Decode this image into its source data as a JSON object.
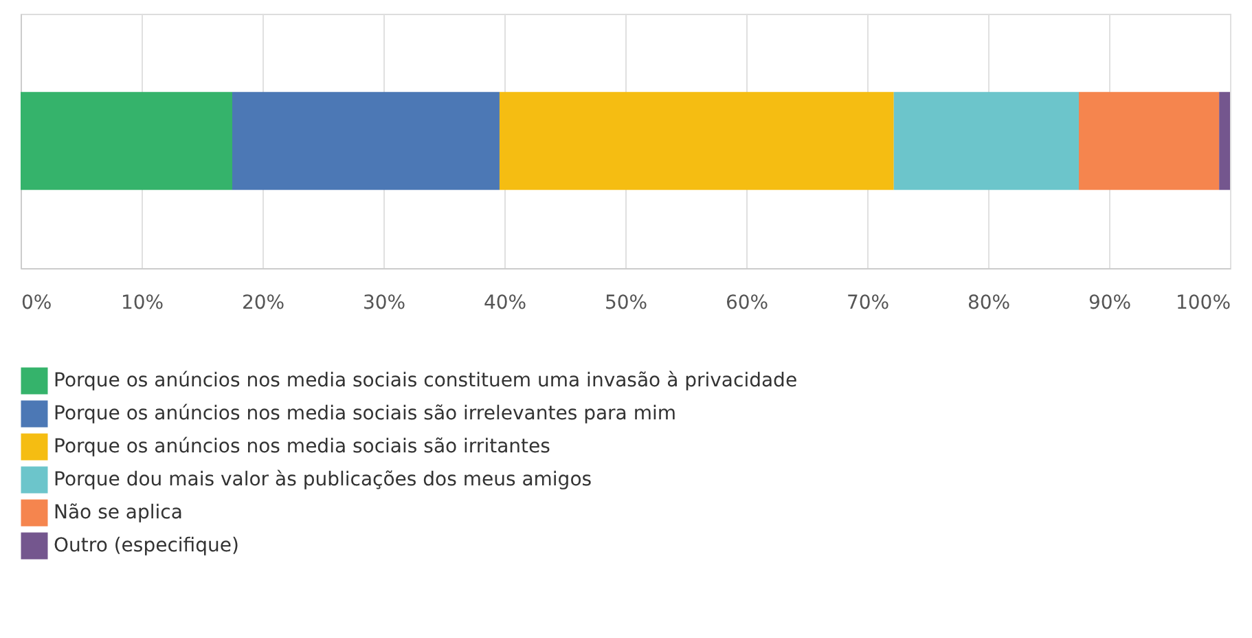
{
  "chart_data": {
    "type": "bar",
    "orientation": "horizontal",
    "stacked": true,
    "categories": [
      null
    ],
    "series": [
      {
        "name": "Porque os anúncios nos media sociais constituem uma invasão à privacidade",
        "color": "#35b36b",
        "values": [
          17.5
        ]
      },
      {
        "name": "Porque os anúncios nos media sociais são irrelevantes para mim",
        "color": "#4c78b5",
        "values": [
          22.1
        ]
      },
      {
        "name": "Porque os anúncios nos media sociais são irritantes",
        "color": "#f5bd12",
        "values": [
          32.6
        ]
      },
      {
        "name": "Porque dou mais valor às publicações dos meus amigos",
        "color": "#6cc5cb",
        "values": [
          15.3
        ]
      },
      {
        "name": "Não se aplica",
        "color": "#f5854e",
        "values": [
          11.6
        ]
      },
      {
        "name": "Outro (especifique)",
        "color": "#74568e",
        "values": [
          0.9
        ]
      }
    ],
    "xlim": [
      0,
      100
    ],
    "xticks": [
      {
        "value": 0,
        "label": "0%"
      },
      {
        "value": 10,
        "label": "10%"
      },
      {
        "value": 20,
        "label": "20%"
      },
      {
        "value": 30,
        "label": "30%"
      },
      {
        "value": 40,
        "label": "40%"
      },
      {
        "value": 50,
        "label": "50%"
      },
      {
        "value": 60,
        "label": "60%"
      },
      {
        "value": 70,
        "label": "70%"
      },
      {
        "value": 80,
        "label": "80%"
      },
      {
        "value": 90,
        "label": "90%"
      },
      {
        "value": 100,
        "label": "100%"
      }
    ],
    "grid": "x",
    "legend": "bottom",
    "tick_labels": "x"
  }
}
